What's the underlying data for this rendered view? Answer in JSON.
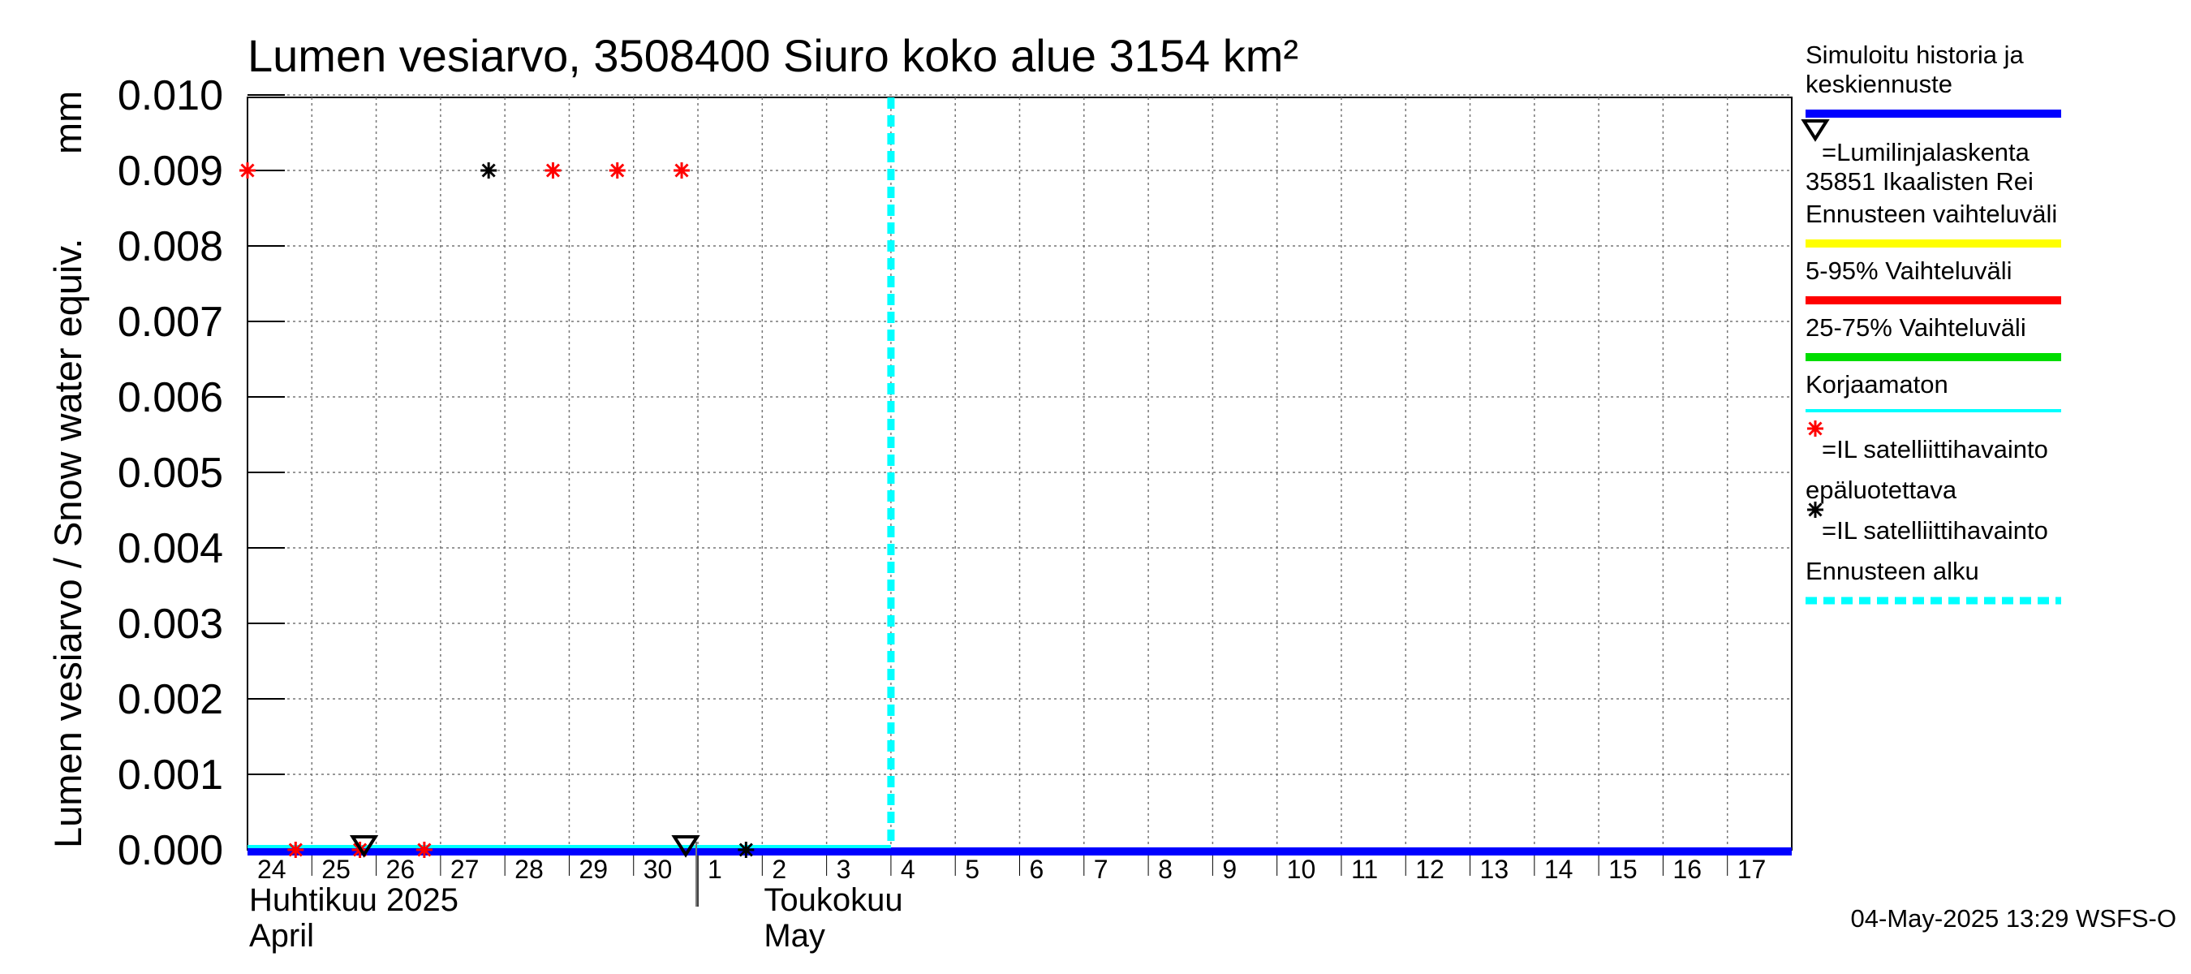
{
  "chart_data": {
    "type": "line",
    "title": "Lumen vesiarvo, 3508400 Siuro koko alue 3154 km²",
    "ylabel": "Lumen vesiarvo / Snow water equiv.",
    "yunit": "mm",
    "ylim": [
      0.0,
      0.01
    ],
    "yticks": [
      "0.000",
      "0.001",
      "0.002",
      "0.003",
      "0.004",
      "0.005",
      "0.006",
      "0.007",
      "0.008",
      "0.009",
      "0.010"
    ],
    "xlim": [
      0,
      24
    ],
    "x_day_labels": [
      "24",
      "25",
      "26",
      "27",
      "28",
      "29",
      "30",
      "1",
      "2",
      "3",
      "4",
      "5",
      "6",
      "7",
      "8",
      "9",
      "10",
      "11",
      "12",
      "13",
      "14",
      "15",
      "16",
      "17"
    ],
    "months": [
      {
        "fi": "Huhtikuu  2025",
        "en": "April",
        "x": 0
      },
      {
        "fi": "Toukokuu",
        "en": "May",
        "x": 8
      }
    ],
    "grid": true,
    "series": [
      {
        "name": "Simuloitu historia ja keskiennuste",
        "color": "#0000ff",
        "style": "line",
        "x": [
          0,
          24
        ],
        "y": [
          0.0,
          0.0
        ]
      },
      {
        "name": "Korjaamaton",
        "color": "#00ffff",
        "style": "line",
        "x": [
          0,
          10
        ],
        "y": [
          0.0,
          0.0
        ]
      },
      {
        "name": "IL satelliittihavainto",
        "color": "#ff0000",
        "style": "marker",
        "x": [
          0,
          1,
          2,
          3,
          5,
          6,
          7
        ],
        "y": [
          0.009,
          0.0,
          0.0,
          0.0,
          0.009,
          0.009,
          0.009
        ]
      },
      {
        "name": "IL satelliittihavainto epäluotettava",
        "color": "#000000",
        "style": "marker",
        "x": [
          4,
          8
        ],
        "y": [
          0.009,
          0.0
        ]
      },
      {
        "name": "Lumilinjalaskenta",
        "color": "#000000",
        "style": "triangle",
        "x": [
          2,
          7
        ],
        "y": [
          0.0,
          0.0
        ]
      }
    ],
    "forecast_start_x": 10,
    "footer": "04-May-2025 13:29 WSFS-O"
  },
  "legend": [
    {
      "lines": [
        "Simuloitu historia ja",
        "keskiennuste"
      ],
      "kind": "line",
      "color": "#0000ff"
    },
    {
      "lines": [
        "=Lumilinjalaskenta",
        "35851 Ikaalisten Rei"
      ],
      "kind": "triangle",
      "color": "#000000"
    },
    {
      "lines": [
        "Ennusteen vaihteluväli"
      ],
      "kind": "line",
      "color": "#ffff00"
    },
    {
      "lines": [
        "5-95% Vaihteluväli"
      ],
      "kind": "line",
      "color": "#ff0000"
    },
    {
      "lines": [
        "25-75% Vaihteluväli"
      ],
      "kind": "line",
      "color": "#00dd00"
    },
    {
      "lines": [
        "Korjaamaton"
      ],
      "kind": "thinline",
      "color": "#00ffff"
    },
    {
      "lines": [
        "=IL satelliittihavainto"
      ],
      "kind": "star",
      "color": "#ff0000"
    },
    {
      "lines": [
        "epäluotettava",
        "=IL satelliittihavainto"
      ],
      "kind": "star2",
      "color": "#000000"
    },
    {
      "lines": [
        "Ennusteen alku"
      ],
      "kind": "dashed",
      "color": "#00ffff"
    }
  ]
}
